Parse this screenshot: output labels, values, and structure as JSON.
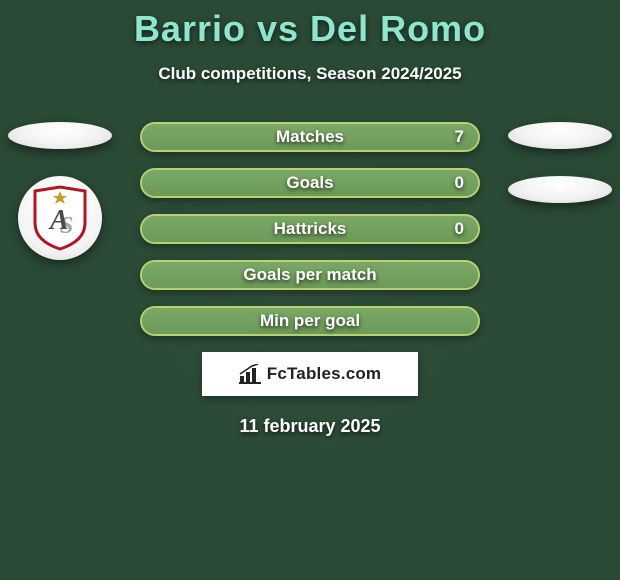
{
  "title_color": "#8fe6cf",
  "player_left": "Barrio",
  "vs_text": "vs",
  "player_right": "Del Romo",
  "subtitle": "Club competitions, Season 2024/2025",
  "stats": [
    {
      "label": "Matches",
      "value": "7",
      "fill_pct": 100,
      "show_value": true
    },
    {
      "label": "Goals",
      "value": "0",
      "fill_pct": 100,
      "show_value": true
    },
    {
      "label": "Hattricks",
      "value": "0",
      "fill_pct": 100,
      "show_value": true
    },
    {
      "label": "Goals per match",
      "value": "",
      "fill_pct": 100,
      "show_value": false
    },
    {
      "label": "Min per goal",
      "value": "",
      "fill_pct": 100,
      "show_value": false
    }
  ],
  "bar": {
    "track_color": "#6d8f6b",
    "fill_color": "#7aa866",
    "border_color": "#b8d070"
  },
  "ovals": {
    "left_top": true,
    "right_top": true,
    "right_2": true
  },
  "badge": {
    "shield_border": "#b01622",
    "shield_fill": "#ffffff",
    "letter_color": "#4a4a4a",
    "star_color": "#c79a2a"
  },
  "attribution": "FcTables.com",
  "date_text": "11 february 2025"
}
